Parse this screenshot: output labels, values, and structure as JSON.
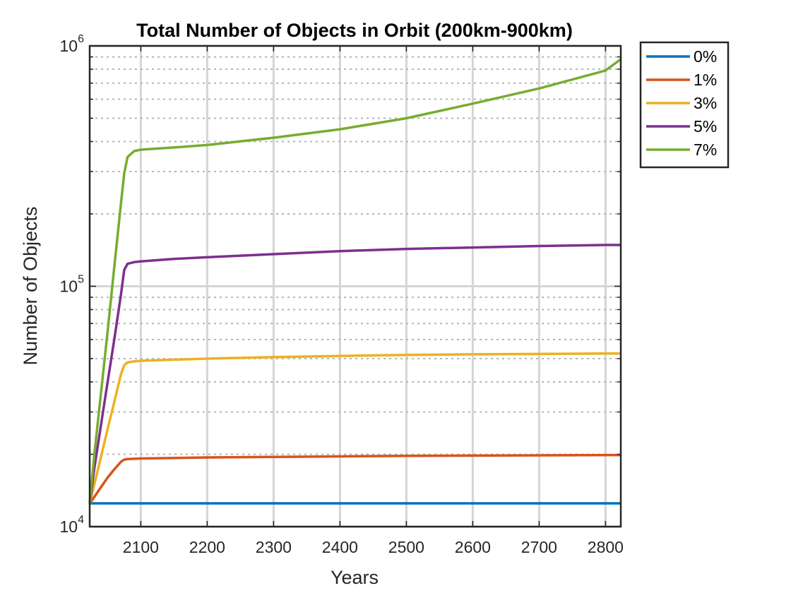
{
  "chart_data": {
    "type": "line",
    "title": "Total Number of Objects in Orbit (200km-900km)",
    "xlabel": "Years",
    "ylabel": "Number of Objects",
    "y_scale": "log",
    "xlim": [
      2023,
      2823
    ],
    "ylim": [
      10000,
      1000000
    ],
    "x_ticks": [
      "2100",
      "2200",
      "2300",
      "2400",
      "2500",
      "2600",
      "2700",
      "2800"
    ],
    "y_ticks": [
      {
        "value": 10000,
        "base": "10",
        "exp": "4"
      },
      {
        "value": 100000,
        "base": "10",
        "exp": "5"
      },
      {
        "value": 1000000,
        "base": "10",
        "exp": "6"
      }
    ],
    "grid": true,
    "legend_position": "outside-top-right",
    "x": [
      2023,
      2030,
      2040,
      2050,
      2060,
      2070,
      2075,
      2080,
      2090,
      2100,
      2150,
      2200,
      2300,
      2400,
      2500,
      2600,
      2700,
      2800,
      2823
    ],
    "series": [
      {
        "name": "0%",
        "color": "#0072BD",
        "values": [
          12500,
          12500,
          12500,
          12500,
          12500,
          12500,
          12500,
          12500,
          12500,
          12500,
          12500,
          12500,
          12500,
          12500,
          12500,
          12500,
          12500,
          12500,
          12500
        ]
      },
      {
        "name": "1%",
        "color": "#D95319",
        "values": [
          12500,
          13300,
          14600,
          16000,
          17300,
          18600,
          19000,
          19100,
          19150,
          19200,
          19300,
          19400,
          19500,
          19600,
          19700,
          19750,
          19800,
          19850,
          19850
        ]
      },
      {
        "name": "3%",
        "color": "#EDB120",
        "values": [
          12500,
          15000,
          19500,
          25500,
          33000,
          43000,
          47000,
          48200,
          48700,
          49000,
          49500,
          50000,
          50700,
          51300,
          51800,
          52100,
          52300,
          52500,
          52500
        ]
      },
      {
        "name": "5%",
        "color": "#7E2F8E",
        "values": [
          12500,
          17500,
          26500,
          40000,
          60000,
          92000,
          117000,
          124000,
          126000,
          127000,
          130000,
          132000,
          136000,
          140000,
          143000,
          145000,
          147000,
          148500,
          148500
        ]
      },
      {
        "name": "7%",
        "color": "#77AC30",
        "values": [
          12500,
          20000,
          36000,
          65000,
          120000,
          220000,
          295000,
          345000,
          365000,
          370000,
          378000,
          387000,
          415000,
          450000,
          500000,
          575000,
          665000,
          790000,
          880000
        ]
      }
    ]
  }
}
